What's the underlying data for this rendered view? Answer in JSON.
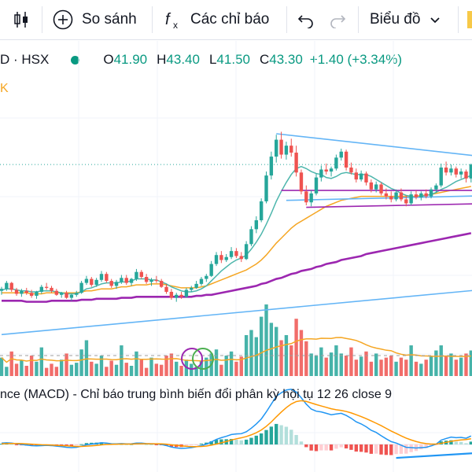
{
  "toolbar": {
    "compare_label": "So sánh",
    "indicators_label": "Các chỉ báo",
    "chart_type_label": "Biểu đồ"
  },
  "legend": {
    "symbol": "D · HSX",
    "open_label": "O",
    "open": "41.90",
    "high_label": "H",
    "high": "43.40",
    "low_label": "L",
    "low": "41.50",
    "close_label": "C",
    "close": "43.30",
    "change": "+1.40 (+3.34%)",
    "subline": "K"
  },
  "macd_title": "nce (MACD) - Chỉ báo trung bình biến đổi phân kỳ hội tụ 12 26 close 9",
  "colors": {
    "up": "#26a69a",
    "down": "#ef5350",
    "ma_purple": "#9c27b0",
    "ma_orange": "#f5a623",
    "ma_teal": "#4db6ac",
    "trendline": "#64b5f6",
    "price_line": "#26a69a"
  },
  "chart_data": {
    "type": "candlestick",
    "last_candle": {
      "open": 41.9,
      "high": 43.4,
      "low": 41.5,
      "close": 43.3,
      "change": 1.4,
      "change_pct": 3.34
    },
    "candles": [
      [
        30.6,
        31.0,
        30.2,
        30.8
      ],
      [
        30.8,
        31.6,
        30.6,
        31.4
      ],
      [
        31.4,
        31.5,
        30.5,
        30.7
      ],
      [
        30.7,
        30.9,
        30.1,
        30.3
      ],
      [
        30.3,
        30.8,
        30.0,
        30.6
      ],
      [
        30.6,
        30.9,
        30.2,
        30.4
      ],
      [
        30.4,
        30.7,
        29.9,
        30.1
      ],
      [
        30.1,
        30.6,
        29.8,
        30.5
      ],
      [
        30.5,
        31.2,
        30.3,
        31.0
      ],
      [
        31.0,
        31.4,
        30.7,
        30.9
      ],
      [
        30.9,
        31.1,
        30.4,
        30.6
      ],
      [
        30.6,
        30.8,
        30.1,
        30.2
      ],
      [
        30.2,
        30.5,
        29.9,
        30.4
      ],
      [
        30.4,
        30.6,
        29.8,
        29.9
      ],
      [
        29.9,
        30.3,
        29.6,
        30.2
      ],
      [
        30.2,
        30.6,
        30.0,
        30.4
      ],
      [
        30.4,
        31.6,
        30.3,
        31.4
      ],
      [
        31.4,
        32.1,
        31.2,
        31.8
      ],
      [
        31.8,
        32.0,
        31.0,
        31.2
      ],
      [
        31.2,
        31.9,
        31.0,
        31.7
      ],
      [
        31.7,
        32.6,
        31.5,
        32.3
      ],
      [
        32.3,
        32.5,
        31.4,
        31.6
      ],
      [
        31.6,
        31.8,
        30.9,
        31.1
      ],
      [
        31.1,
        31.7,
        30.8,
        31.5
      ],
      [
        31.5,
        32.2,
        31.3,
        31.9
      ],
      [
        31.9,
        32.2,
        31.2,
        31.4
      ],
      [
        31.4,
        31.9,
        31.1,
        31.8
      ],
      [
        31.8,
        32.8,
        31.6,
        32.5
      ],
      [
        32.5,
        32.7,
        31.8,
        32.0
      ],
      [
        32.0,
        32.3,
        31.3,
        31.5
      ],
      [
        31.5,
        31.9,
        31.1,
        31.7
      ],
      [
        31.7,
        32.1,
        31.4,
        31.6
      ],
      [
        31.6,
        31.8,
        30.9,
        31.0
      ],
      [
        31.0,
        31.3,
        30.3,
        30.5
      ],
      [
        30.5,
        30.8,
        29.7,
        29.9
      ],
      [
        29.9,
        30.4,
        29.5,
        30.2
      ],
      [
        30.2,
        30.5,
        29.8,
        30.0
      ],
      [
        30.0,
        30.9,
        29.9,
        30.7
      ],
      [
        30.7,
        31.1,
        30.5,
        30.9
      ],
      [
        30.9,
        31.6,
        30.8,
        31.3
      ],
      [
        31.3,
        32.0,
        31.1,
        31.8
      ],
      [
        31.8,
        32.3,
        31.5,
        32.1
      ],
      [
        32.1,
        33.6,
        32.0,
        33.3
      ],
      [
        33.3,
        34.5,
        33.1,
        34.2
      ],
      [
        34.2,
        34.6,
        33.4,
        33.7
      ],
      [
        33.7,
        34.3,
        33.5,
        34.0
      ],
      [
        34.0,
        35.0,
        33.8,
        34.6
      ],
      [
        34.6,
        34.9,
        33.9,
        34.1
      ],
      [
        34.1,
        34.5,
        33.5,
        33.8
      ],
      [
        33.8,
        35.6,
        33.7,
        35.3
      ],
      [
        35.3,
        37.1,
        35.1,
        36.8
      ],
      [
        36.8,
        38.1,
        36.4,
        37.7
      ],
      [
        37.7,
        39.9,
        37.5,
        39.6
      ],
      [
        39.6,
        42.6,
        39.4,
        42.2
      ],
      [
        42.2,
        44.6,
        41.8,
        44.1
      ],
      [
        44.1,
        46.3,
        43.5,
        45.8
      ],
      [
        45.8,
        46.6,
        43.9,
        44.3
      ],
      [
        44.3,
        45.6,
        43.8,
        45.2
      ],
      [
        45.2,
        45.9,
        44.1,
        44.5
      ],
      [
        44.5,
        45.2,
        42.1,
        42.5
      ],
      [
        42.5,
        42.8,
        40.3,
        40.6
      ],
      [
        40.6,
        41.2,
        39.2,
        39.5
      ],
      [
        39.5,
        40.7,
        39.1,
        40.4
      ],
      [
        40.4,
        42.4,
        40.2,
        42.0
      ],
      [
        42.0,
        43.2,
        41.6,
        42.8
      ],
      [
        42.8,
        43.4,
        42.3,
        42.6
      ],
      [
        42.6,
        43.1,
        42.1,
        42.9
      ],
      [
        42.9,
        44.3,
        42.7,
        44.0
      ],
      [
        44.0,
        44.9,
        43.7,
        44.6
      ],
      [
        44.6,
        44.8,
        42.7,
        43.0
      ],
      [
        43.0,
        43.5,
        42.3,
        42.5
      ],
      [
        42.5,
        42.9,
        41.5,
        41.8
      ],
      [
        41.8,
        42.7,
        41.6,
        42.4
      ],
      [
        42.4,
        42.6,
        41.2,
        41.5
      ],
      [
        41.5,
        41.8,
        40.5,
        40.8
      ],
      [
        40.8,
        41.6,
        40.5,
        41.3
      ],
      [
        41.3,
        41.5,
        40.2,
        40.4
      ],
      [
        40.4,
        40.9,
        39.8,
        40.1
      ],
      [
        40.1,
        40.6,
        39.5,
        39.8
      ],
      [
        39.8,
        40.8,
        39.6,
        40.5
      ],
      [
        40.5,
        40.9,
        39.6,
        39.8
      ],
      [
        39.8,
        40.2,
        39.1,
        39.4
      ],
      [
        39.4,
        40.6,
        39.2,
        40.3
      ],
      [
        40.3,
        40.7,
        39.8,
        40.0
      ],
      [
        40.0,
        40.6,
        39.7,
        40.4
      ],
      [
        40.4,
        40.8,
        39.9,
        40.1
      ],
      [
        40.1,
        41.0,
        39.9,
        40.8
      ],
      [
        40.8,
        41.4,
        40.5,
        41.2
      ],
      [
        41.2,
        43.4,
        41.0,
        43.0
      ],
      [
        43.0,
        43.6,
        42.2,
        42.5
      ],
      [
        42.5,
        43.3,
        42.2,
        42.9
      ],
      [
        42.9,
        43.1,
        42.0,
        42.3
      ],
      [
        42.3,
        42.9,
        41.9,
        42.6
      ],
      [
        42.6,
        42.8,
        41.5,
        41.9
      ],
      [
        41.9,
        43.4,
        41.5,
        43.3
      ]
    ],
    "volume": [
      18,
      9,
      24,
      12,
      15,
      10,
      20,
      14,
      28,
      8,
      12,
      9,
      16,
      22,
      11,
      13,
      26,
      35,
      14,
      12,
      20,
      9,
      15,
      11,
      30,
      13,
      10,
      24,
      16,
      8,
      18,
      12,
      11,
      20,
      22,
      14,
      10,
      16,
      12,
      9,
      15,
      18,
      22,
      26,
      11,
      20,
      24,
      14,
      19,
      40,
      45,
      38,
      58,
      70,
      52,
      48,
      35,
      40,
      30,
      56,
      45,
      34,
      22,
      20,
      28,
      18,
      23,
      30,
      22,
      20,
      28,
      16,
      19,
      24,
      14,
      22,
      16,
      18,
      20,
      14,
      18,
      16,
      30,
      14,
      12,
      16,
      19,
      25,
      30,
      20,
      22,
      16,
      18,
      22,
      25
    ],
    "ma_purple": [
      29.6,
      29.6,
      29.6,
      29.6,
      29.6,
      29.5,
      29.5,
      29.5,
      29.5,
      29.5,
      29.6,
      29.6,
      29.6,
      29.6,
      29.6,
      29.6,
      29.7,
      29.7,
      29.7,
      29.8,
      29.8,
      29.8,
      29.8,
      29.8,
      29.9,
      29.9,
      29.9,
      30.0,
      30.0,
      30.0,
      30.0,
      30.0,
      30.0,
      30.0,
      30.0,
      30.0,
      30.0,
      30.0,
      30.0,
      30.1,
      30.1,
      30.2,
      30.2,
      30.3,
      30.4,
      30.5,
      30.6,
      30.7,
      30.8,
      30.9,
      31.0,
      31.1,
      31.3,
      31.4,
      31.6,
      31.8,
      31.9,
      32.1,
      32.3,
      32.4,
      32.6,
      32.7,
      32.8,
      33.0,
      33.1,
      33.3,
      33.4,
      33.5,
      33.7,
      33.8,
      33.9,
      34.0,
      34.1,
      34.3,
      34.4,
      34.5,
      34.6,
      34.7,
      34.8,
      34.9,
      35.0,
      35.1,
      35.2,
      35.3,
      35.4,
      35.5,
      35.6,
      35.7,
      35.8,
      35.9,
      36.0,
      36.1,
      36.2,
      36.3,
      36.4
    ],
    "ma_orange": [
      30.4,
      30.4,
      30.4,
      30.4,
      30.4,
      30.4,
      30.3,
      30.3,
      30.3,
      30.4,
      30.4,
      30.4,
      30.4,
      30.4,
      30.4,
      30.4,
      30.5,
      30.6,
      30.6,
      30.7,
      30.8,
      30.8,
      30.8,
      30.9,
      31.0,
      31.0,
      31.1,
      31.2,
      31.2,
      31.2,
      31.3,
      31.3,
      31.3,
      31.2,
      31.1,
      31.0,
      30.9,
      30.9,
      30.9,
      30.9,
      31.0,
      31.1,
      31.3,
      31.5,
      31.7,
      31.9,
      32.1,
      32.3,
      32.5,
      32.7,
      33.0,
      33.3,
      33.7,
      34.2,
      34.8,
      35.4,
      35.9,
      36.4,
      36.9,
      37.3,
      37.6,
      37.9,
      38.2,
      38.5,
      38.8,
      39.1,
      39.3,
      39.5,
      39.7,
      39.8,
      39.9,
      40.0,
      40.1,
      40.1,
      40.1,
      40.1,
      40.1,
      40.1,
      40.1,
      40.1,
      40.1,
      40.1,
      40.1,
      40.1,
      40.2,
      40.2,
      40.3,
      40.4,
      40.5,
      40.6,
      40.7,
      40.8,
      40.9,
      41.0,
      41.1
    ],
    "ma_teal": [
      30.7,
      30.8,
      30.8,
      30.7,
      30.6,
      30.6,
      30.5,
      30.5,
      30.6,
      30.6,
      30.6,
      30.5,
      30.4,
      30.3,
      30.3,
      30.3,
      30.5,
      30.8,
      30.9,
      31.1,
      31.3,
      31.4,
      31.4,
      31.4,
      31.5,
      31.5,
      31.6,
      31.8,
      31.8,
      31.8,
      31.7,
      31.7,
      31.5,
      31.3,
      31.0,
      30.8,
      30.6,
      30.5,
      30.5,
      30.6,
      30.8,
      31.1,
      31.6,
      32.1,
      32.6,
      33.0,
      33.4,
      33.7,
      33.9,
      34.2,
      34.8,
      35.5,
      36.3,
      37.3,
      38.4,
      39.6,
      40.6,
      41.5,
      42.3,
      42.9,
      43.1,
      42.9,
      42.6,
      42.4,
      42.3,
      42.0,
      41.9,
      42.1,
      42.4,
      42.5,
      42.4,
      42.3,
      42.3,
      42.3,
      42.1,
      41.8,
      41.5,
      41.2,
      40.9,
      40.7,
      40.4,
      40.2,
      40.1,
      40.0,
      40.1,
      40.2,
      40.3,
      40.5,
      40.8,
      41.0,
      41.3,
      41.6,
      41.8,
      42.0,
      42.2
    ],
    "macd_line": [
      0.1,
      0.12,
      0.1,
      0.05,
      0.0,
      -0.04,
      -0.08,
      -0.1,
      -0.08,
      -0.06,
      -0.08,
      -0.12,
      -0.15,
      -0.2,
      -0.22,
      -0.2,
      -0.12,
      -0.02,
      0.02,
      0.06,
      0.12,
      0.1,
      0.05,
      0.04,
      0.06,
      0.04,
      0.05,
      0.1,
      0.1,
      0.06,
      0.05,
      0.04,
      0.0,
      -0.08,
      -0.18,
      -0.24,
      -0.28,
      -0.26,
      -0.22,
      -0.16,
      -0.08,
      0.02,
      0.18,
      0.36,
      0.48,
      0.58,
      0.7,
      0.74,
      0.76,
      0.9,
      1.15,
      1.45,
      1.8,
      2.3,
      2.85,
      3.4,
      3.65,
      3.85,
      3.9,
      3.7,
      3.3,
      2.85,
      2.5,
      2.35,
      2.3,
      2.2,
      2.1,
      2.15,
      2.2,
      2.05,
      1.85,
      1.6,
      1.45,
      1.25,
      1.0,
      0.85,
      0.62,
      0.4,
      0.2,
      0.1,
      -0.05,
      -0.2,
      -0.22,
      -0.25,
      -0.22,
      -0.2,
      -0.1,
      0.02,
      0.3,
      0.42,
      0.52,
      0.48,
      0.5,
      0.44,
      0.6
    ],
    "macd_signal": [
      0.05,
      0.06,
      0.07,
      0.07,
      0.06,
      0.04,
      0.02,
      0.0,
      -0.02,
      -0.03,
      -0.04,
      -0.06,
      -0.08,
      -0.1,
      -0.12,
      -0.14,
      -0.14,
      -0.12,
      -0.1,
      -0.07,
      -0.03,
      0.0,
      0.01,
      0.02,
      0.03,
      0.03,
      0.03,
      0.04,
      0.05,
      0.05,
      0.05,
      0.05,
      0.04,
      0.02,
      -0.02,
      -0.06,
      -0.1,
      -0.13,
      -0.15,
      -0.15,
      -0.14,
      -0.11,
      -0.05,
      0.03,
      0.12,
      0.21,
      0.31,
      0.4,
      0.47,
      0.56,
      0.68,
      0.83,
      1.02,
      1.28,
      1.59,
      1.95,
      2.29,
      2.6,
      2.86,
      3.03,
      3.09,
      3.04,
      2.93,
      2.82,
      2.72,
      2.62,
      2.52,
      2.45,
      2.4,
      2.33,
      2.23,
      2.1,
      1.97,
      1.82,
      1.66,
      1.5,
      1.33,
      1.14,
      0.95,
      0.78,
      0.61,
      0.45,
      0.32,
      0.21,
      0.12,
      0.06,
      0.03,
      0.03,
      0.08,
      0.15,
      0.22,
      0.28,
      0.32,
      0.35,
      0.4
    ],
    "trendlines": [
      {
        "name": "upper-resistance",
        "x1": 55,
        "y1": 46.4,
        "x2": 100,
        "y2": 43.9
      },
      {
        "name": "lower-support",
        "x1": 0,
        "y1": 26.2,
        "x2": 100,
        "y2": 30.9
      },
      {
        "name": "box-top",
        "x1": 56,
        "y1": 40.7,
        "x2": 100,
        "y2": 40.7,
        "color": "#9c27b0"
      },
      {
        "name": "box-bottom",
        "x1": 61,
        "y1": 39.0,
        "x2": 100,
        "y2": 39.4,
        "color": "#9c27b0"
      },
      {
        "name": "box-upper-blue",
        "x1": 57,
        "y1": 39.7,
        "x2": 100,
        "y2": 40.2
      }
    ],
    "price_line": 43.3,
    "macd_trendline": {
      "x1": 79,
      "y1": -0.95,
      "x2": 100,
      "y2": -0.5
    }
  }
}
